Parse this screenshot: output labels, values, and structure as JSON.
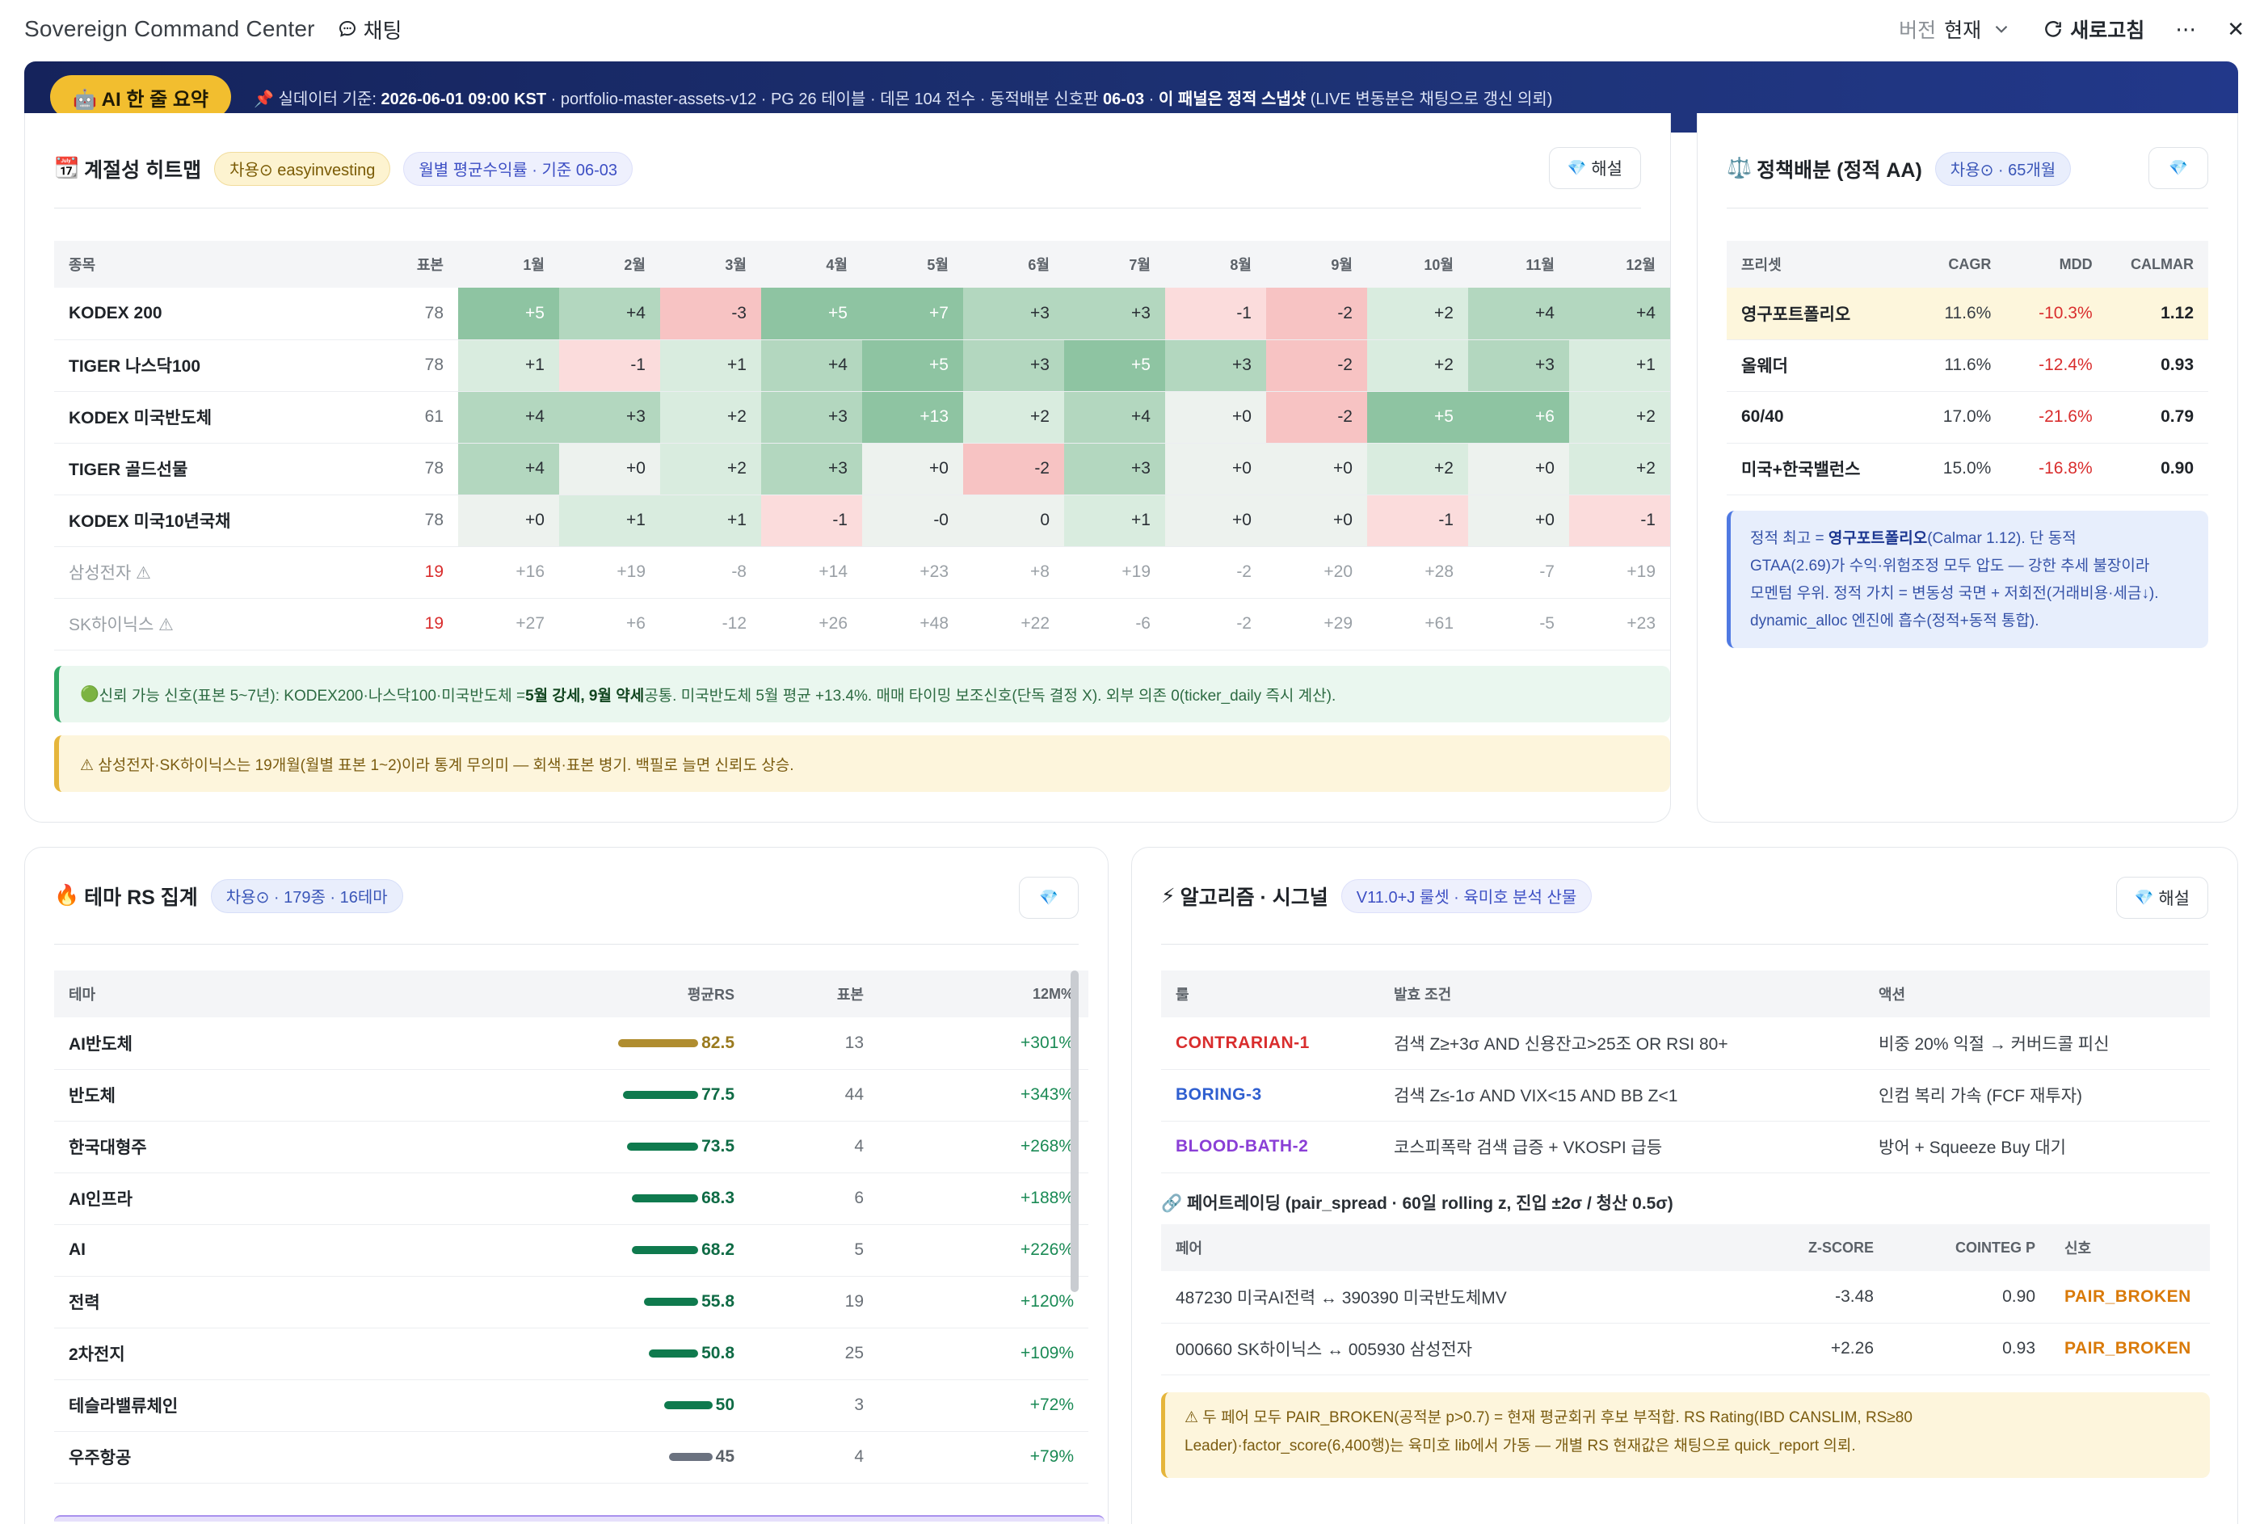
{
  "app": {
    "title": "Sovereign Command Center",
    "chat_label": "채팅",
    "version_label": "버전",
    "version_value": "현재",
    "refresh_label": "새로고침"
  },
  "banner": {
    "button_label": "🤖 AI 한 줄 요약",
    "pin": "📌",
    "pre_date": " 실데이터 기준: ",
    "date": "2026-06-01 09:00 KST",
    "mid": " · portfolio-master-assets-v12 · PG 26 테이블 · 데몬 104 전수 · 동적배분 신호판 ",
    "signal_date": "06-03",
    "sep": " · ",
    "static_note": "이 패널은 정적 스냅샷",
    "tail": " (LIVE 변동분은 채팅으로 갱신 의뢰)"
  },
  "heatmap": {
    "title": "계절성 히트맵",
    "emoji": "📆",
    "pill_source": "차용⊙ easyinvesting",
    "pill_basis": "월별 평균수익률 · 기준 06-03",
    "explain_label": "해설",
    "columns": [
      "종목",
      "표본",
      "1월",
      "2월",
      "3월",
      "4월",
      "5월",
      "6월",
      "7월",
      "8월",
      "9월",
      "10월",
      "11월",
      "12월"
    ],
    "rows": [
      {
        "name": "KODEX 200",
        "n": "78",
        "values": [
          "+5",
          "+4",
          "-3",
          "+5",
          "+7",
          "+3",
          "+3",
          "-1",
          "-2",
          "+2",
          "+4",
          "+4"
        ],
        "muted": false
      },
      {
        "name": "TIGER 나스닥100",
        "n": "78",
        "values": [
          "+1",
          "-1",
          "+1",
          "+4",
          "+5",
          "+3",
          "+5",
          "+3",
          "-2",
          "+2",
          "+3",
          "+1"
        ],
        "muted": false
      },
      {
        "name": "KODEX 미국반도체",
        "n": "61",
        "values": [
          "+4",
          "+3",
          "+2",
          "+3",
          "+13",
          "+2",
          "+4",
          "+0",
          "-2",
          "+5",
          "+6",
          "+2"
        ],
        "muted": false
      },
      {
        "name": "TIGER 골드선물",
        "n": "78",
        "values": [
          "+4",
          "+0",
          "+2",
          "+3",
          "+0",
          "-2",
          "+3",
          "+0",
          "+0",
          "+2",
          "+0",
          "+2"
        ],
        "muted": false
      },
      {
        "name": "KODEX 미국10년국채",
        "n": "78",
        "values": [
          "+0",
          "+1",
          "+1",
          "-1",
          "-0",
          "0",
          "+1",
          "+0",
          "+0",
          "-1",
          "+0",
          "-1"
        ],
        "muted": false
      },
      {
        "name": "삼성전자 ⚠",
        "n": "19",
        "values": [
          "+16",
          "+19",
          "-8",
          "+14",
          "+23",
          "+8",
          "+19",
          "-2",
          "+20",
          "+28",
          "-7",
          "+19"
        ],
        "muted": true
      },
      {
        "name": "SK하이닉스 ⚠",
        "n": "19",
        "values": [
          "+27",
          "+6",
          "-12",
          "+26",
          "+48",
          "+22",
          "-6",
          "-2",
          "+29",
          "+61",
          "-5",
          "+23"
        ],
        "muted": true
      }
    ],
    "note_green": {
      "icon": "🟢",
      "pre": " 신뢰 가능 신호(표본 5~7년): KODEX200·나스닥100·미국반도체 = ",
      "bold": "5월 강세, 9월 약세",
      "post": " 공통. 미국반도체 5월 평균 +13.4%. 매매 타이밍 보조신호(단독 결정 X). 외부 의존 0(ticker_daily 즉시 계산)."
    },
    "note_yellow": "⚠ 삼성전자·SK하이닉스는 19개월(월별 표본 1~2)이라 통계 무의미 — 회색·표본 병기. 백필로 늘면 신뢰도 상승.",
    "colors": {
      "pos_strong": "#8ec4a2",
      "pos_mid": "#b3d7bf",
      "pos_weak": "#d9ecdf",
      "zero": "#edf2ee",
      "neg_weak": "#fbdcdc",
      "neg_mid": "#f7c3c3"
    }
  },
  "policy": {
    "title": "정책배분 (정적 AA)",
    "emoji": "⚖️",
    "pill": "차용⊙ · 65개월",
    "columns": [
      "프리셋",
      "CAGR",
      "MDD",
      "CALMAR"
    ],
    "rows": [
      {
        "name": "영구포트폴리오",
        "cagr": "11.6%",
        "mdd": "-10.3%",
        "calmar": "1.12",
        "highlight": true
      },
      {
        "name": "올웨더",
        "cagr": "11.6%",
        "mdd": "-12.4%",
        "calmar": "0.93",
        "highlight": false
      },
      {
        "name": "60/40",
        "cagr": "17.0%",
        "mdd": "-21.6%",
        "calmar": "0.79",
        "highlight": false
      },
      {
        "name": "미국+한국밸런스",
        "cagr": "15.0%",
        "mdd": "-16.8%",
        "calmar": "0.90",
        "highlight": false
      }
    ],
    "note": {
      "pre": "정적 최고 = ",
      "bold": "영구포트폴리오",
      "line1_post": "(Calmar 1.12). 단 동적",
      "line2": "GTAA(2.69)가 수익·위험조정 모두 압도 — 강한 추세 불장이라",
      "line3": "모멘텀 우위. 정적 가치 = 변동성 국면 + 저회전(거래비용·세금↓).",
      "line4": "dynamic_alloc 엔진에 흡수(정적+동적 통합)."
    }
  },
  "theme_rs": {
    "title": "테마 RS 집계",
    "emoji": "🔥",
    "pill": "차용⊙ · 179종 · 16테마",
    "columns": [
      "테마",
      "평균RS",
      "표본",
      "12M%"
    ],
    "rows": [
      {
        "name": "AI반도체",
        "rs": "82.5",
        "rs_value": 82.5,
        "n": "13",
        "pct": "+301%",
        "bar_color": "#b08d2f"
      },
      {
        "name": "반도체",
        "rs": "77.5",
        "rs_value": 77.5,
        "n": "44",
        "pct": "+343%",
        "bar_color": "#0f7a4e"
      },
      {
        "name": "한국대형주",
        "rs": "73.5",
        "rs_value": 73.5,
        "n": "4",
        "pct": "+268%",
        "bar_color": "#0f7a4e"
      },
      {
        "name": "AI인프라",
        "rs": "68.3",
        "rs_value": 68.3,
        "n": "6",
        "pct": "+188%",
        "bar_color": "#0f7a4e"
      },
      {
        "name": "AI",
        "rs": "68.2",
        "rs_value": 68.2,
        "n": "5",
        "pct": "+226%",
        "bar_color": "#0f7a4e"
      },
      {
        "name": "전력",
        "rs": "55.8",
        "rs_value": 55.8,
        "n": "19",
        "pct": "+120%",
        "bar_color": "#0f7a4e"
      },
      {
        "name": "2차전지",
        "rs": "50.8",
        "rs_value": 50.8,
        "n": "25",
        "pct": "+109%",
        "bar_color": "#0f7a4e"
      },
      {
        "name": "테슬라밸류체인",
        "rs": "50",
        "rs_value": 50,
        "n": "3",
        "pct": "+72%",
        "bar_color": "#0f7a4e"
      },
      {
        "name": "우주항공",
        "rs": "45",
        "rs_value": 45,
        "n": "4",
        "pct": "+79%",
        "bar_color": "#6b7280"
      }
    ]
  },
  "algo": {
    "title": "알고리즘 · 시그널",
    "emoji": "⚡",
    "pill": "V11.0+J 룰셋 · 육미호 분석 산물",
    "explain_label": "해설",
    "columns": [
      "룰",
      "발효 조건",
      "액션"
    ],
    "rules": [
      {
        "rule": "CONTRARIAN-1",
        "cond": "검색 Z≥+3σ AND 신용잔고>25조 OR RSI 80+",
        "action": "비중 20% 익절 → 커버드콜 피신",
        "color": "#d92d2d"
      },
      {
        "rule": "BORING-3",
        "cond": "검색 Z≤-1σ AND VIX<15 AND BB Z<1",
        "action": "인컴 복리 가속 (FCF 재투자)",
        "color": "#2f5fd0"
      },
      {
        "rule": "BLOOD-BATH-2",
        "cond": "코스피폭락 검색 급증 + VKOSPI 급등",
        "action": "방어 + Squeeze Buy 대기",
        "color": "#8a3fd6"
      }
    ],
    "pair_title": "🔗 페어트레이딩 (pair_spread · 60일 rolling z, 진입 ±2σ / 청산 0.5σ)",
    "pair_columns": [
      "페어",
      "Z-SCORE",
      "COINTEG P",
      "신호"
    ],
    "pairs": [
      {
        "pair": "487230 미국AI전력 ↔ 390390 미국반도체MV",
        "z": "-3.48",
        "p": "0.90",
        "signal": "PAIR_BROKEN"
      },
      {
        "pair": "000660 SK하이닉스 ↔ 005930 삼성전자",
        "z": "+2.26",
        "p": "0.93",
        "signal": "PAIR_BROKEN"
      }
    ],
    "note_line1": "⚠ 두 페어 모두 PAIR_BROKEN(공적분 p>0.7) = 현재 평균회귀 후보 부적합. RS Rating(IBD CANSLIM, RS≥80",
    "note_line2": "Leader)·factor_score(6,400행)는 육미호 lib에서 가동 — 개별 RS 현재값은 채팅으로 quick_report 의뢰."
  }
}
